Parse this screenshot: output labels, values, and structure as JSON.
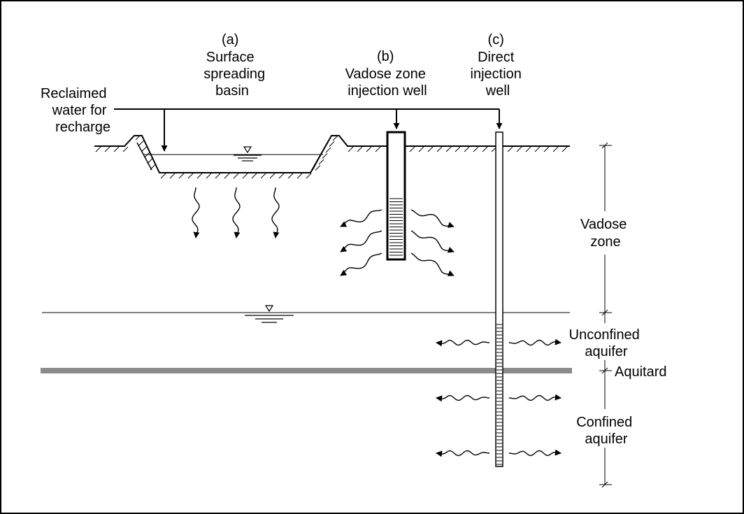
{
  "labels": {
    "reclaimed": [
      "Reclaimed",
      "water for",
      "recharge"
    ],
    "option_a": [
      "(a)",
      "Surface",
      "spreading",
      "basin"
    ],
    "option_b": [
      "(b)",
      "Vadose zone",
      "injection well"
    ],
    "option_c": [
      "(c)",
      "Direct",
      "injection",
      "well"
    ],
    "vadose_zone": [
      "Vadose",
      "zone"
    ],
    "unconfined_aquifer": [
      "Unconfined",
      "aquifer"
    ],
    "aquitard": "Aquitard",
    "confined_aquifer": [
      "Confined",
      "aquifer"
    ]
  },
  "colors": {
    "line": "#000000",
    "aquitard": "#8c8c8c",
    "background": "#ffffff"
  },
  "icons": [
    "water-table-symbol",
    "flow-arrow",
    "screen-hatching",
    "soil-hatching"
  ]
}
